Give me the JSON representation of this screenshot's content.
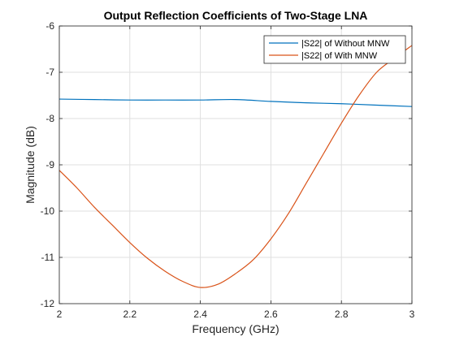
{
  "chart_data": {
    "type": "line",
    "title": "Output Reflection Coefficients of Two-Stage LNA",
    "xlabel": "Frequency (GHz)",
    "ylabel": "Magnitude (dB)",
    "xlim": [
      2,
      3
    ],
    "ylim": [
      -12,
      -6
    ],
    "xticks": [
      2,
      2.2,
      2.4,
      2.6,
      2.8,
      3
    ],
    "xtick_labels": [
      "2",
      "2.2",
      "2.4",
      "2.6",
      "2.8",
      "3"
    ],
    "yticks": [
      -12,
      -11,
      -10,
      -9,
      -8,
      -7,
      -6
    ],
    "ytick_labels": [
      "-12",
      "-11",
      "-10",
      "-9",
      "-8",
      "-7",
      "-6"
    ],
    "grid": true,
    "legend_position": "top-right",
    "series": [
      {
        "name": "|S22| of Without MNW",
        "color": "#0072BD",
        "x": [
          2.0,
          2.1,
          2.2,
          2.3,
          2.4,
          2.5,
          2.6,
          2.7,
          2.8,
          2.9,
          3.0
        ],
        "y": [
          -7.58,
          -7.59,
          -7.6,
          -7.6,
          -7.6,
          -7.59,
          -7.63,
          -7.66,
          -7.68,
          -7.71,
          -7.74
        ]
      },
      {
        "name": "|S22| of With MNW",
        "color": "#D95319",
        "x": [
          2.0,
          2.05,
          2.1,
          2.15,
          2.2,
          2.25,
          2.3,
          2.35,
          2.4,
          2.45,
          2.5,
          2.55,
          2.6,
          2.65,
          2.7,
          2.75,
          2.8,
          2.85,
          2.9,
          2.95,
          3.0
        ],
        "y": [
          -9.12,
          -9.5,
          -9.92,
          -10.3,
          -10.68,
          -11.02,
          -11.3,
          -11.52,
          -11.65,
          -11.58,
          -11.35,
          -11.05,
          -10.6,
          -10.05,
          -9.4,
          -8.75,
          -8.1,
          -7.5,
          -7.0,
          -6.7,
          -6.42
        ]
      }
    ]
  }
}
